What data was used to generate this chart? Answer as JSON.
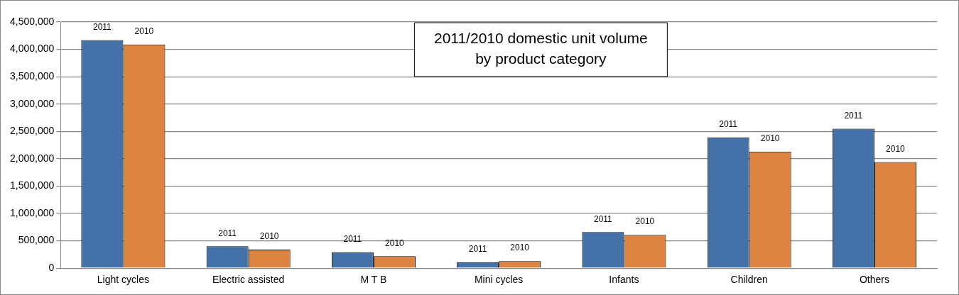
{
  "chart_data": {
    "type": "bar",
    "title": "2011/2010 domestic unit volume by product category",
    "categories": [
      "Light cycles",
      "Electric assisted",
      "M T B",
      "Mini cycles",
      "Infants",
      "Children",
      "Others"
    ],
    "series": [
      {
        "name": "2011",
        "color": "#4472a8",
        "values": [
          4170000,
          400000,
          290000,
          110000,
          660000,
          2390000,
          2550000
        ]
      },
      {
        "name": "2010",
        "color": "#dc843f",
        "values": [
          4090000,
          340000,
          220000,
          130000,
          610000,
          2130000,
          1940000
        ]
      }
    ],
    "ylim": [
      0,
      4500000
    ],
    "yticks": [
      0,
      {
        "value": 500000,
        "label": "500,000"
      },
      {
        "value": 1000000,
        "label": "1,000,000"
      },
      {
        "value": 1500000,
        "label": "1,500,000"
      },
      {
        "value": 2000000,
        "label": "2,000,000"
      },
      {
        "value": 2500000,
        "label": "2,500,000"
      },
      {
        "value": 3000000,
        "label": "3,000,000"
      },
      {
        "value": 3500000,
        "label": "3,500,000"
      },
      {
        "value": 4000000,
        "label": "4,000,000"
      },
      {
        "value": 4500000,
        "label": "4,500,000"
      }
    ],
    "grid": "y",
    "legend": false
  }
}
